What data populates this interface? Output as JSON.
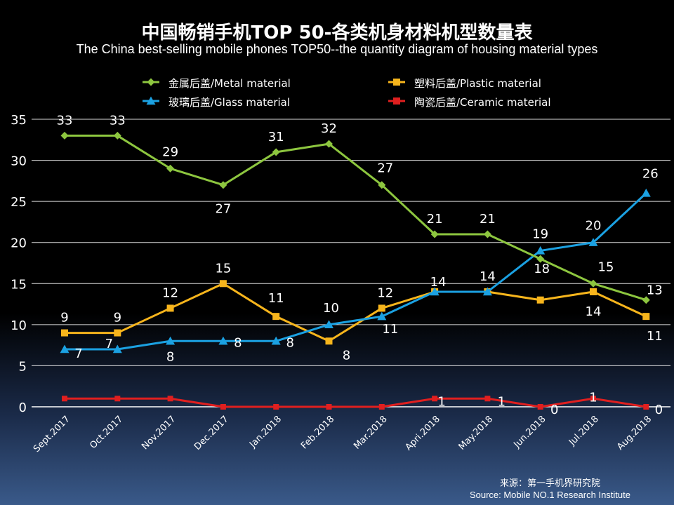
{
  "title": "中国畅销手机TOP 50-各类机身材料机型数量表",
  "subtitle": "The China best-selling mobile phones TOP50--the quantity diagram of housing material types",
  "source_cn": "来源：第一手机界研究院",
  "source_en": "Source: Mobile NO.1 Research Institute",
  "colors": {
    "metal": "#8dc63f",
    "plastic": "#f7b51c",
    "glass": "#1ba1e2",
    "ceramic": "#e01f1f",
    "grid": "#ffffff",
    "text": "#ffffff"
  },
  "chart_data": {
    "type": "line",
    "title": "中国畅销手机TOP 50-各类机身材料机型数量表",
    "xlabel": "",
    "ylabel": "",
    "ylim": [
      0,
      35
    ],
    "yticks": [
      0,
      5,
      10,
      15,
      20,
      25,
      30,
      35
    ],
    "grid": true,
    "legend_position": "top",
    "categories": [
      "Sept.2017",
      "Oct.2017",
      "Nov.2017",
      "Dec.2017",
      "Jan.2018",
      "Feb.2018",
      "Mar.2018",
      "Apri.2018",
      "May.2018",
      "Jun.2018",
      "Jul.2018",
      "Aug.2018"
    ],
    "series": [
      {
        "key": "metal",
        "name": "金属后盖/Metal material",
        "marker": "diamond",
        "values": [
          33,
          33,
          29,
          27,
          31,
          32,
          27,
          21,
          21,
          18,
          15,
          13
        ]
      },
      {
        "key": "plastic",
        "name": "塑料后盖/Plastic material",
        "marker": "square",
        "values": [
          9,
          9,
          12,
          15,
          11,
          8,
          12,
          14,
          14,
          13,
          14,
          11
        ]
      },
      {
        "key": "glass",
        "name": "玻璃后盖/Glass material",
        "marker": "triangle",
        "values": [
          7,
          7,
          8,
          8,
          8,
          10,
          11,
          14,
          14,
          19,
          20,
          26
        ]
      },
      {
        "key": "ceramic",
        "name": "陶瓷后盖/Ceramic material",
        "marker": "square",
        "values": [
          1,
          1,
          1,
          0,
          0,
          0,
          0,
          1,
          1,
          0,
          1,
          0
        ]
      }
    ],
    "data_labels": [
      {
        "text": "33",
        "series": "metal",
        "index": 0
      },
      {
        "text": "33",
        "series": "metal",
        "index": 1
      },
      {
        "text": "29",
        "series": "metal",
        "index": 2
      },
      {
        "text": "27",
        "series": "metal",
        "index": 3
      },
      {
        "text": "31",
        "series": "metal",
        "index": 4
      },
      {
        "text": "32",
        "series": "metal",
        "index": 5
      },
      {
        "text": "27",
        "series": "metal",
        "index": 6
      },
      {
        "text": "21",
        "series": "metal",
        "index": 7
      },
      {
        "text": "21",
        "series": "metal",
        "index": 8
      },
      {
        "text": "18",
        "series": "metal",
        "index": 9
      },
      {
        "text": "15",
        "series": "metal",
        "index": 10
      },
      {
        "text": "13",
        "series": "metal",
        "index": 11
      },
      {
        "text": "9",
        "series": "plastic",
        "index": 0
      },
      {
        "text": "9",
        "series": "plastic",
        "index": 1
      },
      {
        "text": "12",
        "series": "plastic",
        "index": 2
      },
      {
        "text": "15",
        "series": "plastic",
        "index": 3
      },
      {
        "text": "11",
        "series": "plastic",
        "index": 4
      },
      {
        "text": "8",
        "series": "plastic",
        "index": 5
      },
      {
        "text": "12",
        "series": "plastic",
        "index": 6
      },
      {
        "text": "14",
        "series": "plastic",
        "index": 7
      },
      {
        "text": "14",
        "series": "plastic",
        "index": 8
      },
      {
        "text": "14",
        "series": "plastic",
        "index": 10
      },
      {
        "text": "11",
        "series": "plastic",
        "index": 11
      },
      {
        "text": "7",
        "series": "glass",
        "index": 0
      },
      {
        "text": "7",
        "series": "glass",
        "index": 1
      },
      {
        "text": "8",
        "series": "glass",
        "index": 2
      },
      {
        "text": "8",
        "series": "glass",
        "index": 3
      },
      {
        "text": "8",
        "series": "glass",
        "index": 4
      },
      {
        "text": "10",
        "series": "glass",
        "index": 5
      },
      {
        "text": "11",
        "series": "glass",
        "index": 6
      },
      {
        "text": "19",
        "series": "glass",
        "index": 9
      },
      {
        "text": "20",
        "series": "glass",
        "index": 10
      },
      {
        "text": "26",
        "series": "glass",
        "index": 11
      },
      {
        "text": "1",
        "series": "ceramic",
        "index": 7
      },
      {
        "text": "1",
        "series": "ceramic",
        "index": 8
      },
      {
        "text": "0",
        "series": "ceramic",
        "index": 9
      },
      {
        "text": "1",
        "series": "ceramic",
        "index": 10
      },
      {
        "text": "0",
        "series": "ceramic",
        "index": 11
      }
    ]
  }
}
